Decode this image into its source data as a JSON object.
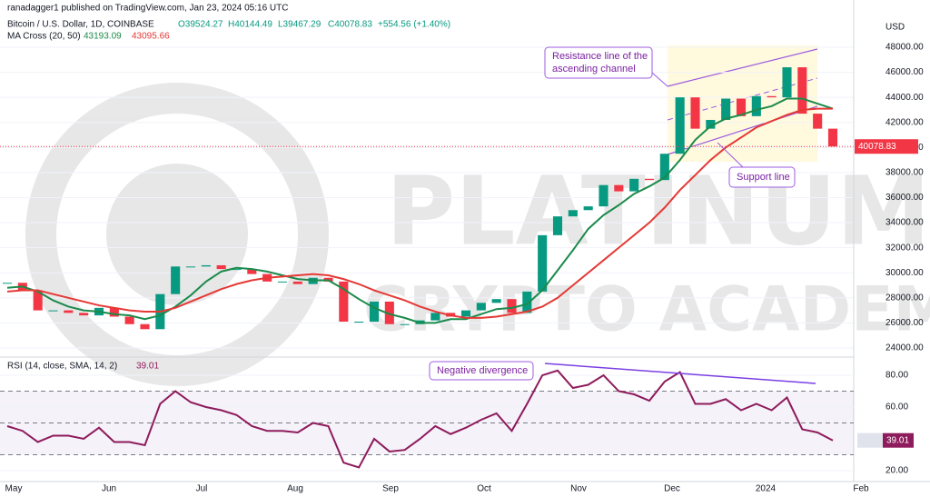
{
  "chart_data": [
    {
      "type": "candlestick",
      "published": "ranadagger1 published on TradingView.com, Jan 23, 2024 05:16 UTC",
      "title": "Bitcoin / U.S. Dollar, 1D, COINBASE",
      "legend_values": [
        "O39524.27",
        "H40144.49",
        "L39467.29",
        "C40078.83",
        "+554.56 (+1.40%)"
      ],
      "indicator": "MA Cross (20, 50)",
      "axis_label": "USD",
      "up_color": "#089981",
      "down_color": "#f23645",
      "close": [
        29200,
        28600,
        27000,
        27000,
        26800,
        26600,
        27200,
        26500,
        25900,
        25500,
        28300,
        30500,
        30500,
        30600,
        30300,
        30300,
        29900,
        29300,
        29300,
        29100,
        29600,
        29300,
        26100,
        26100,
        27700,
        25900,
        25900,
        26200,
        26800,
        26500,
        27000,
        27600,
        27900,
        26800,
        28500,
        33000,
        34500,
        35000,
        35300,
        37000,
        36500,
        37500,
        37400,
        39500,
        44000,
        41500,
        42200,
        43900,
        42500,
        44100,
        44000,
        46400,
        42700,
        41500,
        40078.83
      ],
      "ma_series": [
        {
          "label": "43193.09",
          "color": "#1b8a4b",
          "values": [
            28800,
            28900,
            28500,
            27800,
            27300,
            27000,
            26900,
            26700,
            26600,
            26300,
            26600,
            27300,
            28200,
            29300,
            30100,
            30400,
            30300,
            30100,
            29800,
            29500,
            29400,
            29400,
            28700,
            27900,
            27200,
            26700,
            26400,
            26000,
            26000,
            26300,
            26300,
            26700,
            27100,
            27200,
            27500,
            28600,
            30200,
            31800,
            33500,
            34600,
            35400,
            36300,
            36900,
            37600,
            39000,
            40600,
            41700,
            42300,
            42600,
            43000,
            43300,
            43900,
            43900,
            43500,
            43100
          ]
        },
        {
          "label": "43095.66",
          "color": "#e53935",
          "values": [
            28500,
            28600,
            28600,
            28300,
            28000,
            27700,
            27400,
            27200,
            27000,
            26900,
            26900,
            27200,
            27700,
            28200,
            28700,
            29100,
            29400,
            29600,
            29700,
            29800,
            29900,
            29800,
            29500,
            29100,
            28600,
            28200,
            27800,
            27300,
            26900,
            26600,
            26400,
            26400,
            26500,
            26700,
            26900,
            27300,
            28000,
            29000,
            30000,
            31000,
            32000,
            33000,
            34000,
            35200,
            36600,
            37800,
            39000,
            40000,
            40800,
            41600,
            42100,
            42600,
            43000,
            43100,
            43100
          ]
        }
      ],
      "last_price": {
        "value": 40078.83,
        "label": "40078.83"
      },
      "ylim": [
        23490,
        50320
      ],
      "yticks": [
        {
          "value": 24000,
          "label": "24000.00"
        },
        {
          "value": 26000,
          "label": "26000.00"
        },
        {
          "value": 28000,
          "label": "28000.00"
        },
        {
          "value": 30000,
          "label": "30000.00"
        },
        {
          "value": 32000,
          "label": "32000.00"
        },
        {
          "value": 34000,
          "label": "34000.00"
        },
        {
          "value": 36000,
          "label": "36000.00"
        },
        {
          "value": 38000,
          "label": "38000.00"
        },
        {
          "value": 40000,
          "label": "40000.00"
        },
        {
          "value": 42000,
          "label": "42000.00"
        },
        {
          "value": 44000,
          "label": "44000.00"
        },
        {
          "value": 46000,
          "label": "46000.00"
        },
        {
          "value": 48000,
          "label": "48000.00"
        }
      ],
      "x_labels": [
        "May",
        "Jun",
        "Jul",
        "Aug",
        "Sep",
        "Oct",
        "Nov",
        "Dec",
        "2024",
        "Feb"
      ],
      "annotations": [
        [
          "Resistance line of the",
          "ascending channel"
        ],
        "Support line"
      ],
      "watermark": [
        "PLATINUM",
        "CRYPTO ACADEMY"
      ]
    },
    {
      "type": "line",
      "label": "RSI (14, close, SMA, 14, 2)",
      "last_label": "39.01",
      "color": "#8e1b5b",
      "values": [
        48,
        45,
        38,
        42,
        42,
        40,
        47,
        38,
        38,
        36,
        62,
        70,
        63,
        60,
        58,
        55,
        48,
        45,
        45,
        44,
        50,
        48,
        25,
        22,
        40,
        32,
        33,
        40,
        48,
        43,
        47,
        52,
        56,
        45,
        62,
        80,
        83,
        72,
        74,
        80,
        70,
        68,
        64,
        76,
        82,
        62,
        62,
        65,
        58,
        62,
        58,
        66,
        46,
        44,
        39.01
      ],
      "levels": [
        70,
        50,
        30
      ],
      "ylim": [
        13.1,
        88.6
      ],
      "yticks": [
        {
          "value": 20,
          "label": "20.00"
        },
        {
          "value": 60,
          "label": "60.00"
        },
        {
          "value": 80,
          "label": "80.00"
        }
      ],
      "annotation": "Negative divergence"
    }
  ]
}
